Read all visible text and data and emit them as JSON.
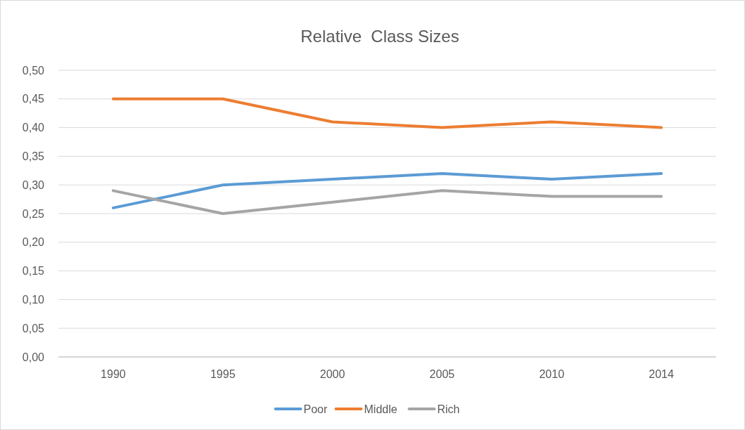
{
  "chart_data": {
    "type": "line",
    "title": "Relative  Class Sizes",
    "categories": [
      "1990",
      "1995",
      "2000",
      "2005",
      "2010",
      "2014"
    ],
    "series": [
      {
        "name": "Poor",
        "color": "#5b9bd5",
        "values": [
          0.26,
          0.3,
          0.31,
          0.32,
          0.31,
          0.32
        ]
      },
      {
        "name": "Middle",
        "color": "#ed7d31",
        "values": [
          0.45,
          0.45,
          0.41,
          0.4,
          0.41,
          0.4
        ]
      },
      {
        "name": "Rich",
        "color": "#a5a5a5",
        "values": [
          0.29,
          0.25,
          0.27,
          0.29,
          0.28,
          0.28
        ]
      }
    ],
    "ylim": [
      0,
      0.5
    ],
    "yticks": [
      {
        "value": 0,
        "label": "0,00"
      },
      {
        "value": 0.05,
        "label": "0,05"
      },
      {
        "value": 0.1,
        "label": "0,10"
      },
      {
        "value": 0.15,
        "label": "0,15"
      },
      {
        "value": 0.2,
        "label": "0,20"
      },
      {
        "value": 0.25,
        "label": "0,25"
      },
      {
        "value": 0.3,
        "label": "0,30"
      },
      {
        "value": 0.35,
        "label": "0,35"
      },
      {
        "value": 0.4,
        "label": "0,40"
      },
      {
        "value": 0.45,
        "label": "0,45"
      },
      {
        "value": 0.5,
        "label": "0,50"
      }
    ],
    "grid": "y",
    "legend": "bottom",
    "marker": "none",
    "line_style": "solid"
  }
}
